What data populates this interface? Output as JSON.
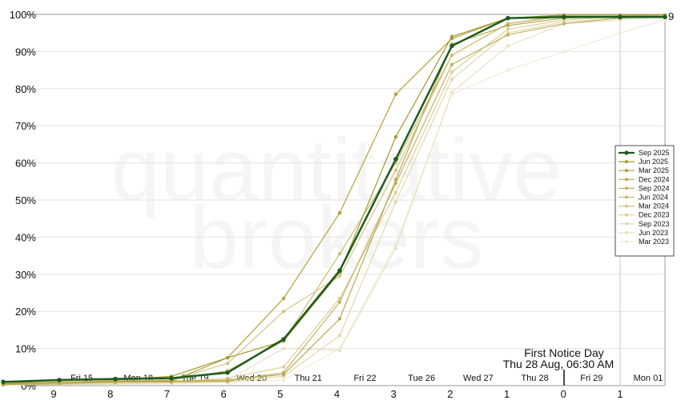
{
  "watermark": {
    "line1": "quantitative",
    "line2": "brokers"
  },
  "annotation": {
    "line1": "First Notice Day",
    "line2": "Thu 28 Aug, 06:30 AM"
  },
  "end_label": "9",
  "colors": {
    "Sep 2025": "#1e5a1e",
    "Jun 2025": "#a59a2e",
    "Mar 2025": "#b3a23e",
    "Dec 2024": "#bba94f",
    "Sep 2024": "#c3b260",
    "Jun 2024": "#cbbb72",
    "Mar 2024": "#d3c585",
    "Dec 2023": "#dbcf99",
    "Sep 2023": "#e2d8ad",
    "Jun 2023": "#e9e2c2",
    "Mar 2023": "#f0ecd7"
  },
  "chart_data": {
    "type": "line",
    "title": "",
    "xlabel": "",
    "ylabel": "",
    "x_ticks": [
      "9",
      "8",
      "7",
      "6",
      "5",
      "4",
      "3",
      "2",
      "1",
      "0",
      "1"
    ],
    "day_labels": [
      "Fri 15",
      "Mon 18",
      "Tue 19",
      "Wed 20",
      "Thu 21",
      "Fri 22",
      "Tue 26",
      "Wed 27",
      "Thu 28",
      "Fri 29",
      "Mon 01"
    ],
    "y_ticks": [
      "0%",
      "10%",
      "20%",
      "30%",
      "40%",
      "50%",
      "60%",
      "70%",
      "80%",
      "90%",
      "100%"
    ],
    "ylim": [
      0,
      100
    ],
    "grid": true,
    "legend_position": "right",
    "series": [
      {
        "name": "Sep 2025",
        "x": [
          10,
          9,
          8,
          7,
          6,
          5,
          4,
          3,
          2,
          1,
          0,
          -1,
          -1.8
        ],
        "y": [
          1,
          1.5,
          1.8,
          2,
          3.5,
          12.5,
          31,
          61,
          91.5,
          99,
          99.3,
          99.3,
          99.3
        ]
      },
      {
        "name": "Jun 2025",
        "x": [
          10,
          9,
          8,
          7,
          6,
          5,
          4,
          3,
          2,
          1,
          0,
          -1,
          -1.8
        ],
        "y": [
          0.5,
          1.5,
          1.5,
          2.5,
          7.5,
          12,
          30.5,
          67,
          94,
          99,
          99.8,
          99.8,
          99.8
        ]
      },
      {
        "name": "Mar 2025",
        "x": [
          10,
          9,
          8,
          7,
          6,
          5,
          4,
          3,
          2,
          1,
          0,
          -1,
          -1.8
        ],
        "y": [
          0.5,
          1,
          1.2,
          1.2,
          7.5,
          23.5,
          46.5,
          78.5,
          93.5,
          99,
          99.8,
          99.8,
          99.8
        ]
      },
      {
        "name": "Dec 2024",
        "x": [
          10,
          9,
          8,
          7,
          6,
          5,
          4,
          3,
          2,
          1,
          0,
          -1,
          -1.8
        ],
        "y": [
          0.3,
          0.8,
          1,
          1.2,
          1.5,
          3,
          18,
          55.5,
          92,
          97,
          99,
          99.5,
          99.8
        ]
      },
      {
        "name": "Sep 2024",
        "x": [
          10,
          9,
          8,
          7,
          6,
          5,
          4,
          3,
          2,
          1,
          0,
          -1,
          -1.8
        ],
        "y": [
          0.3,
          0.5,
          1,
          1,
          1.2,
          3.5,
          22.5,
          54.5,
          86.5,
          94.5,
          97.5,
          99,
          99.5
        ]
      },
      {
        "name": "Jun 2024",
        "x": [
          10,
          9,
          8,
          7,
          6,
          5,
          4,
          3,
          2,
          1,
          0,
          -1,
          -1.8
        ],
        "y": [
          0.3,
          0.5,
          1.2,
          1.5,
          4,
          12,
          35.5,
          60,
          89,
          97.5,
          99.5,
          99.5,
          99.8
        ]
      },
      {
        "name": "Mar 2024",
        "x": [
          10,
          9,
          8,
          7,
          6,
          5,
          4,
          3,
          2,
          1,
          0,
          -1,
          -1.8
        ],
        "y": [
          0.3,
          0.5,
          1,
          1.5,
          6,
          20,
          29.5,
          58,
          89,
          97.5,
          99.8,
          99.8,
          99.8
        ]
      },
      {
        "name": "Dec 2023",
        "x": [
          10,
          9,
          8,
          7,
          6,
          5,
          4,
          3,
          2,
          1,
          0,
          -1,
          -1.8
        ],
        "y": [
          0.3,
          0.5,
          0.8,
          1,
          2,
          5,
          23.5,
          52,
          84.5,
          96,
          98.5,
          99.5,
          99.8
        ]
      },
      {
        "name": "Sep 2023",
        "x": [
          10,
          9,
          8,
          7,
          6,
          5,
          4,
          3,
          2,
          1,
          0,
          -1,
          -1.8
        ],
        "y": [
          0.2,
          0.3,
          0.5,
          0.8,
          1,
          2.5,
          13.5,
          49.5,
          82.5,
          95,
          98,
          99,
          99.5
        ]
      },
      {
        "name": "Jun 2023",
        "x": [
          10,
          9,
          8,
          7,
          6,
          5,
          4,
          3,
          2,
          1,
          0,
          -1,
          -1.8
        ],
        "y": [
          0.2,
          0.3,
          0.5,
          0.8,
          1.5,
          10,
          9.5,
          37,
          79,
          91.5,
          97.5,
          98.5,
          99.5
        ]
      },
      {
        "name": "Mar 2023",
        "x": [
          10,
          9,
          8,
          7,
          6,
          5,
          4,
          3,
          2,
          1,
          0,
          -1,
          -1.8
        ],
        "y": [
          0.2,
          0.3,
          0.4,
          0.5,
          0.8,
          1.5,
          10,
          38,
          78.5,
          85,
          90,
          95,
          98.5
        ]
      }
    ]
  }
}
